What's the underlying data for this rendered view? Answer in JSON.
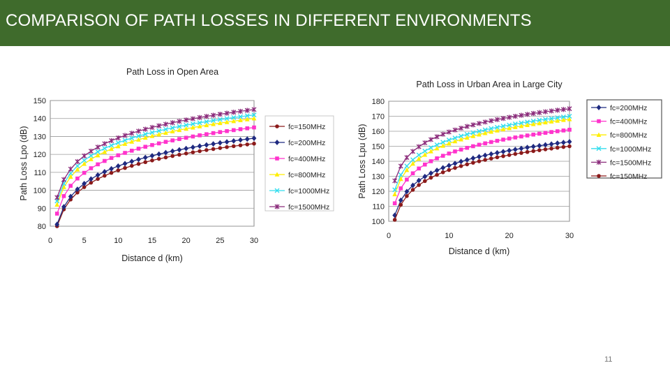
{
  "slide": {
    "title": "COMPARISON OF PATH LOSSES IN DIFFERENT ENVIRONMENTS",
    "page_number": "11",
    "accent_color": "#3f6b2c"
  },
  "chart_data": [
    {
      "type": "line",
      "title": "Path Loss in Open Area",
      "xlabel": "Distance d (km)",
      "ylabel": "Path Loss Lpo (dB)",
      "xlim": [
        0,
        30
      ],
      "ylim": [
        80,
        150
      ],
      "xticks": [
        0,
        5,
        10,
        15,
        20,
        25,
        30
      ],
      "yticks": [
        80,
        90,
        100,
        110,
        120,
        130,
        140,
        150
      ],
      "grid": "horizontal",
      "legend_position": "right",
      "x": [
        1,
        2,
        3,
        4,
        5,
        6,
        7,
        8,
        9,
        10,
        11,
        12,
        13,
        14,
        15,
        16,
        17,
        18,
        19,
        20,
        21,
        22,
        23,
        24,
        25,
        26,
        27,
        28,
        29,
        30
      ],
      "series": [
        {
          "name": "fc=150MHz",
          "color": "#8b1a1a",
          "marker": "circle",
          "start": 80.0,
          "end": 126.0
        },
        {
          "name": "fc=200MHz",
          "color": "#1f2a80",
          "marker": "diamond",
          "start": 81.0,
          "end": 129.0
        },
        {
          "name": "fc=400MHz",
          "color": "#ff33cc",
          "marker": "square",
          "start": 87.0,
          "end": 135.0
        },
        {
          "name": "fc=800MHz",
          "color": "#ffee00",
          "marker": "triangle",
          "start": 92.0,
          "end": 140.0
        },
        {
          "name": "fc=1000MHz",
          "color": "#33ddee",
          "marker": "x",
          "start": 94.0,
          "end": 142.0
        },
        {
          "name": "fc=1500MHz",
          "color": "#8a2a7a",
          "marker": "star",
          "start": 96.0,
          "end": 145.0
        }
      ]
    },
    {
      "type": "line",
      "title": "Path Loss in Urban Area in Large City",
      "xlabel": "Distance d (km)",
      "ylabel": "Path Loss Lpu (dB)",
      "xlim": [
        0,
        30
      ],
      "ylim": [
        100,
        180
      ],
      "xticks": [
        0,
        10,
        20,
        30
      ],
      "yticks": [
        100,
        110,
        120,
        130,
        140,
        150,
        160,
        170,
        180
      ],
      "grid": "horizontal",
      "legend_position": "right",
      "x": [
        1,
        2,
        3,
        4,
        5,
        6,
        7,
        8,
        9,
        10,
        11,
        12,
        13,
        14,
        15,
        16,
        17,
        18,
        19,
        20,
        21,
        22,
        23,
        24,
        25,
        26,
        27,
        28,
        29,
        30
      ],
      "series": [
        {
          "name": "fc=200MHz",
          "color": "#1f2a80",
          "marker": "diamond",
          "start": 104.0,
          "end": 153.0
        },
        {
          "name": "fc=400MHz",
          "color": "#ff33cc",
          "marker": "square",
          "start": 112.0,
          "end": 161.0
        },
        {
          "name": "fc=800MHz",
          "color": "#ffee00",
          "marker": "triangle",
          "start": 118.0,
          "end": 168.0
        },
        {
          "name": "fc=1000MHz",
          "color": "#33ddee",
          "marker": "x",
          "start": 121.0,
          "end": 170.0
        },
        {
          "name": "fc=1500MHz",
          "color": "#8a2a7a",
          "marker": "star",
          "start": 127.0,
          "end": 175.0
        },
        {
          "name": "fc=150MHz",
          "color": "#8b1a1a",
          "marker": "circle",
          "start": 101.0,
          "end": 150.0
        }
      ]
    }
  ]
}
